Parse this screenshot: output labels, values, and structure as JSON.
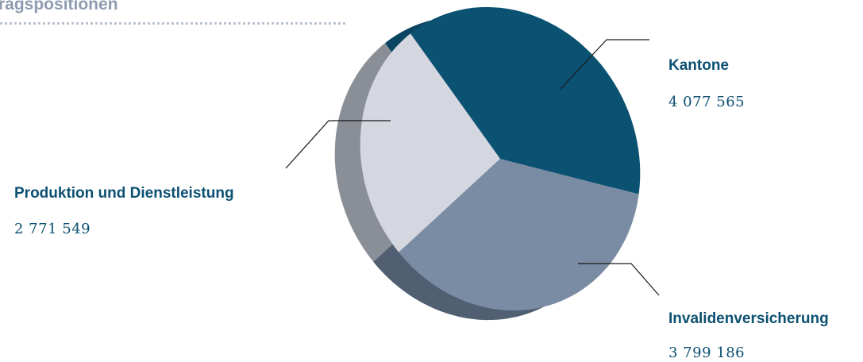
{
  "header": {
    "title": "ragspositionen"
  },
  "chart_data": {
    "type": "pie",
    "title": "",
    "categories": [
      "Kantone",
      "Invalidenversicherung",
      "Produktion und Dienstleistung"
    ],
    "values": [
      4077565,
      3799186,
      2771549
    ],
    "value_labels": [
      "4 077 565",
      "3 799 186",
      "2 771 549"
    ],
    "colors": [
      "#0b5272",
      "#7a8ca4",
      "#d4d7e0"
    ],
    "side_colors": [
      "#0a4460",
      "#505f72",
      "#8a8e96"
    ],
    "style": "3d"
  }
}
